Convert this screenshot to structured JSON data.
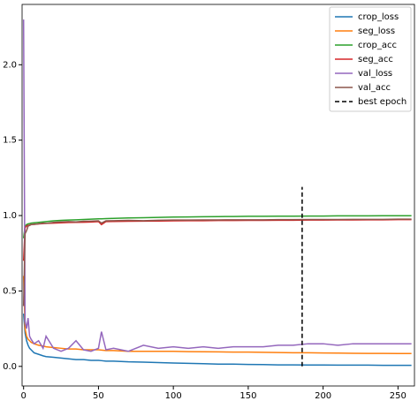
{
  "chart_data": {
    "type": "line",
    "xlim": [
      -1,
      261
    ],
    "ylim": [
      -0.13,
      2.4
    ],
    "xticks": [
      0,
      50,
      100,
      150,
      200,
      250
    ],
    "yticks": [
      {
        "value": 0,
        "label": "0.0"
      },
      0.5,
      {
        "value": 1,
        "label": "1.0"
      },
      1.5,
      {
        "value": 2,
        "label": "2.0"
      }
    ],
    "legend": "upper right",
    "series": [
      {
        "name": "crop_loss",
        "color": "#1f77b4",
        "x": [
          0,
          1,
          2,
          3,
          4,
          5,
          7,
          10,
          13,
          15,
          20,
          25,
          30,
          35,
          40,
          45,
          50,
          52,
          55,
          60,
          70,
          80,
          90,
          100,
          110,
          120,
          130,
          140,
          150,
          160,
          170,
          180,
          190,
          200,
          210,
          220,
          230,
          240,
          250,
          259
        ],
        "values": [
          0.35,
          0.22,
          0.17,
          0.14,
          0.12,
          0.11,
          0.09,
          0.08,
          0.07,
          0.065,
          0.06,
          0.055,
          0.05,
          0.045,
          0.045,
          0.04,
          0.04,
          0.038,
          0.035,
          0.035,
          0.03,
          0.028,
          0.025,
          0.022,
          0.02,
          0.018,
          0.015,
          0.015,
          0.013,
          0.012,
          0.01,
          0.01,
          0.009,
          0.009,
          0.008,
          0.008,
          0.008,
          0.007,
          0.007,
          0.007
        ]
      },
      {
        "name": "seg_loss",
        "color": "#ff7f0e",
        "x": [
          0,
          1,
          2,
          3,
          4,
          5,
          7,
          10,
          13,
          15,
          20,
          25,
          30,
          35,
          40,
          45,
          50,
          52,
          55,
          60,
          70,
          80,
          90,
          100,
          110,
          120,
          130,
          140,
          150,
          160,
          170,
          180,
          190,
          200,
          210,
          220,
          230,
          240,
          250,
          259
        ],
        "values": [
          0.6,
          0.25,
          0.2,
          0.18,
          0.17,
          0.16,
          0.15,
          0.14,
          0.135,
          0.13,
          0.125,
          0.12,
          0.115,
          0.115,
          0.11,
          0.11,
          0.11,
          0.108,
          0.105,
          0.105,
          0.1,
          0.1,
          0.1,
          0.1,
          0.098,
          0.097,
          0.096,
          0.095,
          0.095,
          0.093,
          0.092,
          0.09,
          0.09,
          0.089,
          0.088,
          0.087,
          0.086,
          0.086,
          0.085,
          0.085
        ]
      },
      {
        "name": "crop_acc",
        "color": "#2ca02c",
        "x": [
          0,
          1,
          2,
          3,
          4,
          5,
          7,
          10,
          13,
          15,
          20,
          25,
          30,
          35,
          40,
          45,
          50,
          52,
          55,
          60,
          70,
          80,
          90,
          100,
          110,
          120,
          130,
          140,
          150,
          160,
          170,
          180,
          190,
          200,
          210,
          220,
          230,
          240,
          250,
          259
        ],
        "values": [
          0.85,
          0.93,
          0.94,
          0.945,
          0.947,
          0.95,
          0.952,
          0.955,
          0.958,
          0.96,
          0.965,
          0.968,
          0.97,
          0.972,
          0.974,
          0.976,
          0.978,
          0.978,
          0.98,
          0.981,
          0.984,
          0.986,
          0.988,
          0.99,
          0.991,
          0.992,
          0.993,
          0.994,
          0.995,
          0.995,
          0.996,
          0.996,
          0.997,
          0.997,
          0.998,
          0.998,
          0.998,
          0.999,
          0.999,
          0.999
        ]
      },
      {
        "name": "seg_acc",
        "color": "#d62728",
        "x": [
          0,
          1,
          2,
          3,
          4,
          5,
          7,
          10,
          13,
          15,
          20,
          25,
          30,
          35,
          40,
          45,
          50,
          52,
          55,
          60,
          70,
          80,
          90,
          100,
          110,
          120,
          130,
          140,
          150,
          160,
          170,
          180,
          190,
          200,
          210,
          220,
          230,
          240,
          250,
          259
        ],
        "values": [
          0.7,
          0.92,
          0.93,
          0.935,
          0.937,
          0.94,
          0.942,
          0.945,
          0.947,
          0.948,
          0.95,
          0.952,
          0.954,
          0.955,
          0.956,
          0.957,
          0.96,
          0.94,
          0.96,
          0.961,
          0.962,
          0.963,
          0.964,
          0.965,
          0.966,
          0.966,
          0.967,
          0.967,
          0.968,
          0.968,
          0.969,
          0.969,
          0.97,
          0.97,
          0.971,
          0.971,
          0.972,
          0.972,
          0.973,
          0.973
        ]
      },
      {
        "name": "val_loss",
        "color": "#9467bd",
        "x": [
          0,
          1,
          2,
          3,
          4,
          5,
          7,
          10,
          13,
          15,
          20,
          25,
          30,
          35,
          40,
          45,
          50,
          52,
          55,
          60,
          70,
          80,
          90,
          100,
          110,
          120,
          130,
          140,
          150,
          160,
          170,
          180,
          190,
          200,
          210,
          220,
          230,
          240,
          250,
          259
        ],
        "values": [
          2.3,
          0.3,
          0.25,
          0.32,
          0.2,
          0.18,
          0.15,
          0.17,
          0.12,
          0.2,
          0.12,
          0.1,
          0.12,
          0.17,
          0.11,
          0.1,
          0.12,
          0.23,
          0.11,
          0.12,
          0.1,
          0.14,
          0.12,
          0.13,
          0.12,
          0.13,
          0.12,
          0.13,
          0.13,
          0.13,
          0.14,
          0.14,
          0.15,
          0.15,
          0.14,
          0.15,
          0.15,
          0.15,
          0.15,
          0.15
        ]
      },
      {
        "name": "val_acc",
        "color": "#8c564b",
        "x": [
          0,
          1,
          2,
          3,
          4,
          5,
          7,
          10,
          13,
          15,
          20,
          25,
          30,
          35,
          40,
          45,
          50,
          52,
          55,
          60,
          70,
          80,
          90,
          100,
          110,
          120,
          130,
          140,
          150,
          160,
          170,
          180,
          190,
          200,
          210,
          220,
          230,
          240,
          250,
          259
        ],
        "values": [
          0.4,
          0.88,
          0.9,
          0.93,
          0.935,
          0.94,
          0.942,
          0.945,
          0.95,
          0.948,
          0.955,
          0.958,
          0.96,
          0.958,
          0.962,
          0.963,
          0.965,
          0.95,
          0.965,
          0.966,
          0.968,
          0.966,
          0.969,
          0.97,
          0.97,
          0.971,
          0.971,
          0.972,
          0.972,
          0.972,
          0.973,
          0.973,
          0.974,
          0.974,
          0.974,
          0.975,
          0.975,
          0.975,
          0.976,
          0.976
        ]
      },
      {
        "name": "best epoch",
        "color": "#000000",
        "dashed": true,
        "x": [
          186,
          186
        ],
        "values": [
          0,
          1.19
        ]
      }
    ]
  }
}
